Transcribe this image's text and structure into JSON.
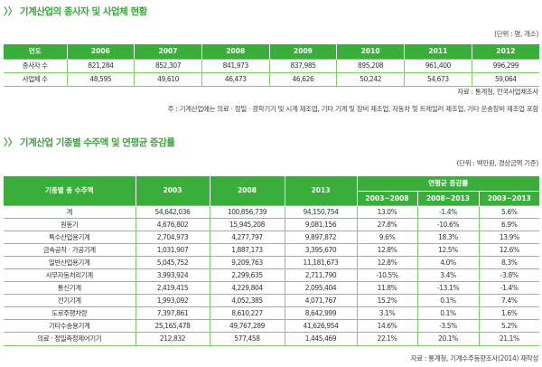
{
  "section1": {
    "title": "〉〉 기계산업의 종사자 및 사업체 현황",
    "unit": "(단위 : 명, 개소)",
    "headers": [
      "연도",
      "2006",
      "2007",
      "2008",
      "2009",
      "2010",
      "2011",
      "2012"
    ],
    "rows": [
      [
        "종사자 수",
        "821,284",
        "852,307",
        "841,973",
        "837,985",
        "895,208",
        "961,400",
        "996,299"
      ],
      [
        "사업체 수",
        "48,595",
        "49,610",
        "46,473",
        "46,626",
        "50,242",
        "54,673",
        "59,064"
      ]
    ],
    "source": "자료 : 통계청, 전국사업체조사",
    "note": "주 : 기계산업에는 의료 · 정밀 · 광학기기 및 시계 제조업, 기타 기계 및 장비 제조업, 자동차 및 트레일러 제조업, 기타 운송장비 제조업 포함"
  },
  "section2": {
    "title": "〉〉 기계산업 기종별 수주액 및 연평균 증감률",
    "unit": "(단위 : 백만원, 경상금액 기준)",
    "headers": [
      "기종별 총 수주액",
      "2003",
      "2008",
      "2013",
      "연평균 증감률"
    ],
    "subheaders": [
      "2003~2008",
      "2008~2013",
      "2003~2013"
    ],
    "rows": [
      [
        "계",
        "54,642,036",
        "100,856,739",
        "94,150,754",
        "13.0%",
        "-1.4%",
        "5.6%"
      ],
      [
        "원동기",
        "4,676,802",
        "15,945,208",
        "9,081,156",
        "27.8%",
        "-10.6%",
        "6.9%"
      ],
      [
        "특수산업용기계",
        "2,704,973",
        "4,277,797",
        "9,897,872",
        "9.6%",
        "18.3%",
        "13.9%"
      ],
      [
        "금속공작 · 가공기계",
        "1,031,907",
        "1,887,173",
        "3,395,670",
        "12.8%",
        "12.5%",
        "12.6%"
      ],
      [
        "일반산업용기계",
        "5,045,752",
        "9,209,763",
        "11,181,673",
        "12.8%",
        "4.0%",
        "8.3%"
      ],
      [
        "사무자동처리기계",
        "3,993,924",
        "2,299,635",
        "2,711,790",
        "-10.5%",
        "3.4%",
        "-3.8%"
      ],
      [
        "통신기계",
        "2,419,415",
        "4,229,804",
        "2,095,404",
        "11.8%",
        "-13.1%",
        "-1.4%"
      ],
      [
        "전기기계",
        "1,993,092",
        "4,052,385",
        "4,071,767",
        "15.2%",
        "0.1%",
        "7.4%"
      ],
      [
        "도로주행차량",
        "7,397,861",
        "8,610,227",
        "8,642,999",
        "3.1%",
        "0.1%",
        "1.6%"
      ],
      [
        "기타수송용기계",
        "25,165,478",
        "49,767,289",
        "41,626,954",
        "14.6%",
        "-3.5%",
        "5.2%"
      ],
      [
        "의료 · 정밀측정제어기기",
        "212,832",
        "577,458",
        "1,445,469",
        "22.1%",
        "20.1%",
        "21.1%"
      ]
    ],
    "source": "자료 : 통계청, 기계수주동향조사(2014) 재작성"
  }
}
